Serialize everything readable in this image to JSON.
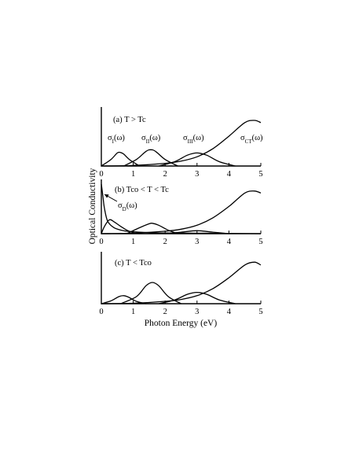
{
  "chart_data": {
    "type": "line",
    "xlabel": "Photon Energy (eV)",
    "ylabel": "Optical Conductivity",
    "xlim": [
      0,
      5
    ],
    "x_ticks": [
      "0",
      "1",
      "2",
      "3",
      "4",
      "5"
    ],
    "grid": false,
    "legend": "none",
    "panels": [
      {
        "label": "(a) T > Tc",
        "series_labels": [
          "σI(ω)",
          "σII(ω)",
          "σIII(ω)",
          "σCT(ω)"
        ],
        "series": [
          {
            "x": [
              0,
              0.3,
              0.5,
              0.6,
              0.7,
              0.9,
              1.2
            ],
            "values": [
              0,
              0.12,
              0.24,
              0.25,
              0.22,
              0.11,
              0
            ]
          },
          {
            "x": [
              0.7,
              1.1,
              1.4,
              1.55,
              1.7,
              2.0,
              2.4
            ],
            "values": [
              0,
              0.12,
              0.27,
              0.3,
              0.27,
              0.12,
              0
            ]
          },
          {
            "x": [
              1.8,
              2.3,
              2.7,
              3.0,
              3.3,
              3.7,
              4.2
            ],
            "values": [
              0,
              0.08,
              0.2,
              0.24,
              0.2,
              0.08,
              0
            ]
          },
          {
            "x": [
              0,
              1,
              2,
              2.5,
              3,
              3.5,
              4,
              4.5,
              4.8,
              5
            ],
            "values": [
              0,
              0.01,
              0.05,
              0.09,
              0.17,
              0.32,
              0.55,
              0.8,
              0.84,
              0.8
            ]
          }
        ]
      },
      {
        "label": "(b) Tco < T < Tc",
        "series_labels": [
          "σD(ω)"
        ],
        "series": [
          {
            "x": [
              0,
              0.05,
              0.1,
              0.2,
              0.4,
              0.7,
              1.0,
              1.5,
              2.0,
              3.0,
              5.0
            ],
            "values": [
              1.0,
              0.75,
              0.5,
              0.25,
              0.12,
              0.06,
              0.04,
              0.02,
              0.015,
              0.01,
              0
            ]
          },
          {
            "x": [
              0,
              0.1,
              0.25,
              0.4,
              0.6,
              0.8,
              1.0,
              1.2
            ],
            "values": [
              0,
              0.15,
              0.28,
              0.24,
              0.15,
              0.07,
              0.02,
              0
            ]
          },
          {
            "x": [
              0.8,
              1.2,
              1.5,
              1.6,
              1.8,
              2.1,
              2.4
            ],
            "values": [
              0,
              0.12,
              0.2,
              0.21,
              0.17,
              0.07,
              0
            ]
          },
          {
            "x": [
              2.0,
              2.5,
              3.0,
              3.5,
              4.0
            ],
            "values": [
              0,
              0.03,
              0.06,
              0.03,
              0
            ]
          },
          {
            "x": [
              0,
              1,
              2,
              2.5,
              3,
              3.5,
              4,
              4.5,
              4.8,
              5
            ],
            "values": [
              0,
              0.01,
              0.05,
              0.09,
              0.17,
              0.32,
              0.55,
              0.82,
              0.86,
              0.82
            ]
          }
        ]
      },
      {
        "label": "(c) T < Tco",
        "series_labels": [],
        "series": [
          {
            "x": [
              0,
              0.3,
              0.55,
              0.7,
              0.85,
              1.1,
              1.4
            ],
            "values": [
              0,
              0.06,
              0.15,
              0.17,
              0.14,
              0.05,
              0
            ]
          },
          {
            "x": [
              0.6,
              1.1,
              1.4,
              1.6,
              1.8,
              2.1,
              2.5
            ],
            "values": [
              0,
              0.15,
              0.38,
              0.45,
              0.38,
              0.15,
              0
            ]
          },
          {
            "x": [
              1.8,
              2.3,
              2.7,
              3.0,
              3.3,
              3.7,
              4.2
            ],
            "values": [
              0,
              0.08,
              0.2,
              0.24,
              0.2,
              0.08,
              0
            ]
          },
          {
            "x": [
              0,
              1,
              2,
              2.5,
              3,
              3.5,
              4,
              4.5,
              4.8,
              5
            ],
            "values": [
              0,
              0.01,
              0.05,
              0.09,
              0.17,
              0.32,
              0.55,
              0.82,
              0.88,
              0.82
            ]
          }
        ]
      }
    ]
  }
}
